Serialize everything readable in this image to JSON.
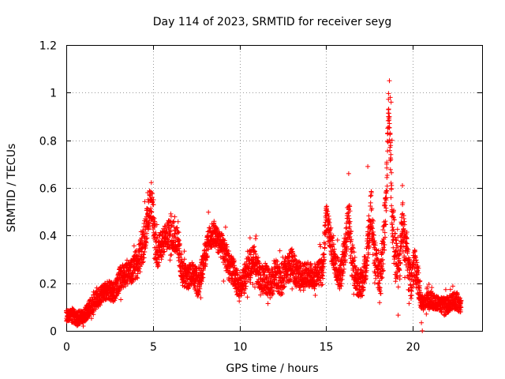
{
  "chart_data": {
    "type": "scatter",
    "title": "Day 114 of 2023, SRMTID for receiver seyg",
    "xlabel": "GPS time / hours",
    "ylabel": "SRMTID / TECUs",
    "xlim": [
      0,
      24
    ],
    "ylim": [
      0,
      1.2
    ],
    "x_ticks": [
      0,
      5,
      10,
      15,
      20
    ],
    "x_tick_labels": [
      "0",
      "5",
      "10",
      "15",
      "20"
    ],
    "y_ticks": [
      0,
      0.2,
      0.4,
      0.6,
      0.8,
      1.0,
      1.2
    ],
    "y_tick_labels": [
      "0",
      "0.2",
      "0.4",
      "0.6",
      "0.8",
      "1",
      "1.2"
    ],
    "grid": true,
    "marker": "+",
    "series": [
      {
        "name": "SRMTID",
        "color": "#ff0000",
        "envelope": {
          "x": [
            0,
            0.3,
            0.6,
            1.0,
            1.3,
            1.6,
            2.0,
            2.4,
            2.8,
            3.1,
            3.5,
            3.8,
            4.2,
            4.5,
            4.8,
            5.0,
            5.2,
            5.5,
            5.8,
            6.1,
            6.4,
            6.7,
            7.0,
            7.3,
            7.6,
            7.9,
            8.2,
            8.5,
            8.8,
            9.1,
            9.4,
            9.7,
            10.0,
            10.3,
            10.6,
            10.9,
            11.2,
            11.5,
            11.8,
            12.1,
            12.4,
            12.7,
            13.0,
            13.3,
            13.6,
            13.9,
            14.2,
            14.5,
            14.8,
            15.0,
            15.2,
            15.5,
            15.8,
            16.1,
            16.3,
            16.5,
            16.8,
            17.1,
            17.4,
            17.6,
            17.8,
            18.1,
            18.3,
            18.5,
            18.6,
            18.8,
            19.0,
            19.2,
            19.4,
            19.7,
            19.9,
            20.1,
            20.3,
            20.5,
            20.7,
            21.0,
            21.3,
            21.6,
            21.9,
            22.2,
            22.5,
            22.8
          ],
          "y": [
            0.06,
            0.07,
            0.05,
            0.06,
            0.09,
            0.12,
            0.15,
            0.17,
            0.16,
            0.22,
            0.24,
            0.25,
            0.3,
            0.38,
            0.52,
            0.5,
            0.32,
            0.36,
            0.4,
            0.41,
            0.38,
            0.24,
            0.22,
            0.25,
            0.2,
            0.28,
            0.38,
            0.41,
            0.37,
            0.34,
            0.27,
            0.24,
            0.17,
            0.22,
            0.28,
            0.3,
            0.21,
            0.22,
            0.19,
            0.24,
            0.21,
            0.26,
            0.28,
            0.24,
            0.22,
            0.24,
            0.23,
            0.24,
            0.25,
            0.48,
            0.4,
            0.28,
            0.22,
            0.35,
            0.5,
            0.3,
            0.2,
            0.2,
            0.35,
            0.52,
            0.3,
            0.22,
            0.35,
            0.62,
            0.97,
            0.5,
            0.3,
            0.25,
            0.45,
            0.28,
            0.2,
            0.28,
            0.22,
            0.12,
            0.12,
            0.13,
            0.12,
            0.11,
            0.1,
            0.12,
            0.13,
            0.1
          ],
          "spread": [
            0.02,
            0.03,
            0.03,
            0.03,
            0.03,
            0.04,
            0.04,
            0.04,
            0.04,
            0.05,
            0.05,
            0.05,
            0.07,
            0.08,
            0.07,
            0.08,
            0.07,
            0.06,
            0.06,
            0.06,
            0.06,
            0.05,
            0.05,
            0.05,
            0.06,
            0.06,
            0.05,
            0.05,
            0.05,
            0.06,
            0.06,
            0.06,
            0.05,
            0.06,
            0.06,
            0.06,
            0.06,
            0.06,
            0.06,
            0.06,
            0.07,
            0.06,
            0.07,
            0.06,
            0.06,
            0.05,
            0.05,
            0.05,
            0.06,
            0.06,
            0.07,
            0.06,
            0.06,
            0.08,
            0.09,
            0.08,
            0.06,
            0.06,
            0.08,
            0.1,
            0.08,
            0.06,
            0.1,
            0.1,
            0.05,
            0.12,
            0.1,
            0.08,
            0.1,
            0.08,
            0.07,
            0.07,
            0.07,
            0.04,
            0.03,
            0.04,
            0.03,
            0.03,
            0.04,
            0.03,
            0.04,
            0.03
          ]
        },
        "notable_points": [
          [
            18.65,
            1.05
          ],
          [
            18.7,
            0.98
          ],
          [
            18.75,
            0.96
          ],
          [
            18.6,
            0.9
          ],
          [
            18.8,
            0.8
          ],
          [
            19.4,
            0.61
          ],
          [
            16.3,
            0.66
          ],
          [
            17.4,
            0.69
          ],
          [
            4.7,
            0.58
          ],
          [
            15.0,
            0.52
          ],
          [
            20.55,
            0.0
          ]
        ]
      }
    ]
  }
}
